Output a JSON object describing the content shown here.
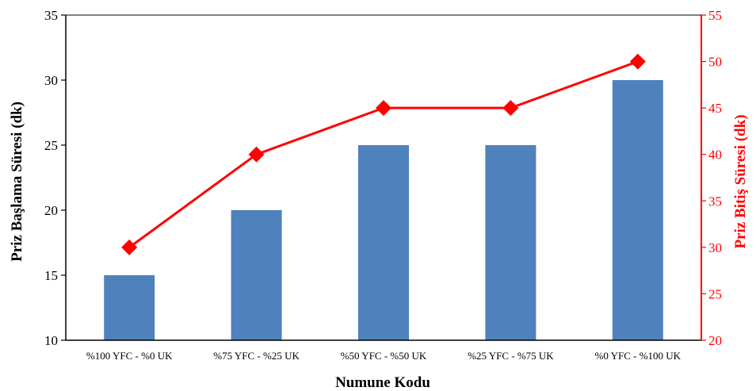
{
  "chart_data": {
    "type": "bar+line",
    "categories": [
      "%100 YFC - %0 UK",
      "%75 YFC - %25 UK",
      "%50 YFC - %50 UK",
      "%25 YFC - %75 UK",
      "%0 YFC - %100 UK"
    ],
    "series": [
      {
        "axis": "left",
        "kind": "bar",
        "values": [
          15,
          20,
          25,
          25,
          30
        ],
        "color": "#4f81bd"
      },
      {
        "axis": "right",
        "kind": "line",
        "marker": "diamond",
        "values": [
          30,
          40,
          45,
          45,
          50
        ],
        "color": "#ff0000"
      }
    ],
    "xlabel": "Numune Kodu",
    "ylabel": "Priz Başlama Süresi (dk)",
    "y2label": "Priz Bitiş Süresi (dk)",
    "ylim": [
      10,
      35
    ],
    "y2lim": [
      20,
      55
    ],
    "yticks": [
      "10",
      "15",
      "20",
      "25",
      "30",
      "35"
    ],
    "y2ticks": [
      "20",
      "25",
      "30",
      "35",
      "40",
      "45",
      "50",
      "55"
    ],
    "grid": false,
    "left_axis_color": "#000000",
    "right_axis_color": "#ff0000"
  }
}
